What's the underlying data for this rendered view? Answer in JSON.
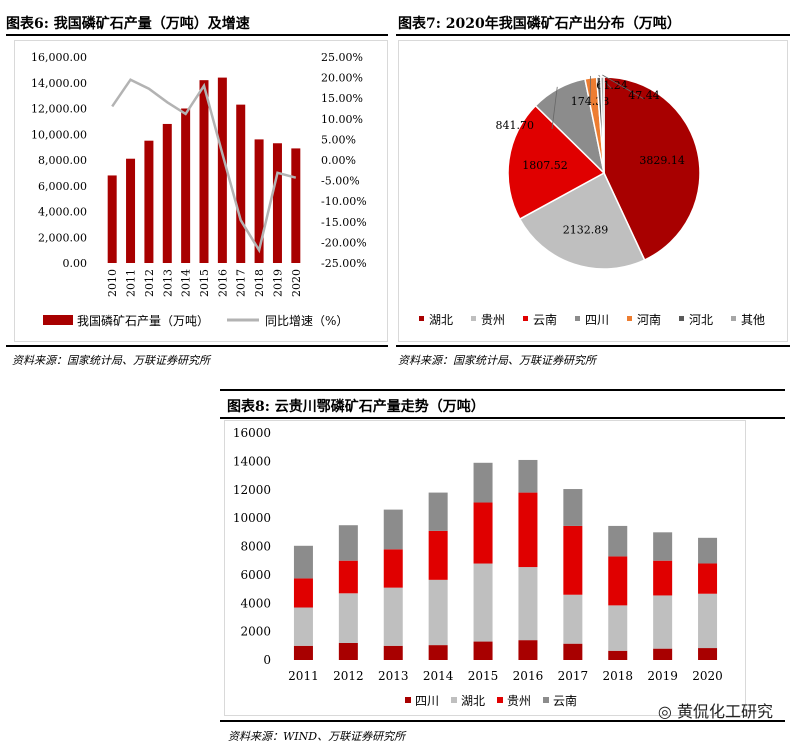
{
  "chart_data": [
    {
      "type": "bar",
      "header": "图表6:  我国磷矿石产量（万吨）及增速",
      "categories": [
        "2010",
        "2011",
        "2012",
        "2013",
        "2014",
        "2015",
        "2016",
        "2017",
        "2018",
        "2019",
        "2020"
      ],
      "series": [
        {
          "name": "我国磷矿石产量（万吨）",
          "type": "bar",
          "axis": "left",
          "color": "#a80000",
          "values": [
            6800,
            8100,
            9500,
            10800,
            12000,
            14200,
            14400,
            12300,
            9600,
            9300,
            8900
          ]
        },
        {
          "name": "同比增速（%）",
          "type": "line",
          "axis": "right",
          "color": "#b3b3b3",
          "values": [
            13.0,
            19.5,
            17.3,
            14.0,
            11.2,
            18.0,
            1.5,
            -14.6,
            -21.9,
            -3.1,
            -4.3
          ]
        }
      ],
      "y_left": {
        "ticks": [
          "16,000.00",
          "14,000.00",
          "12,000.00",
          "10,000.00",
          "8,000.00",
          "6,000.00",
          "4,000.00",
          "2,000.00",
          "0.00"
        ],
        "min": 0,
        "max": 16000
      },
      "y_right": {
        "ticks": [
          "25.00%",
          "20.00%",
          "15.00%",
          "10.00%",
          "5.00%",
          "0.00%",
          "-5.00%",
          "-10.00%",
          "-15.00%",
          "-20.00%",
          "-25.00%"
        ],
        "min": -25,
        "max": 25
      },
      "legend": "bottom",
      "source": "资料来源：国家统计局、万联证券研究所"
    },
    {
      "type": "pie",
      "header": "图表7:  2020年我国磷矿石产出分布（万吨）",
      "slices": [
        {
          "name": "湖北",
          "value": 3829.14,
          "label": "3829.14",
          "color": "#a80000"
        },
        {
          "name": "贵州",
          "value": 2132.89,
          "label": "2132.89",
          "color": "#bfbfbf"
        },
        {
          "name": "云南",
          "value": 1807.52,
          "label": "1807.52",
          "color": "#e00000"
        },
        {
          "name": "四川",
          "value": 841.7,
          "label": "841.70",
          "color": "#8c8c8c"
        },
        {
          "name": "河南",
          "value": 174.38,
          "label": "174.38",
          "color": "#ed7d31"
        },
        {
          "name": "河北",
          "value": 61.24,
          "label": "61.24",
          "color": "#595959"
        },
        {
          "name": "其他",
          "value": 47.44,
          "label": "47.44",
          "color": "#a6a6a6"
        }
      ],
      "legend": "bottom",
      "source": "资料来源：国家统计局、万联证券研究所"
    },
    {
      "type": "bar",
      "stacked": true,
      "header": "图表8:  云贵川鄂磷矿石产量走势（万吨）",
      "categories": [
        "2011",
        "2012",
        "2013",
        "2014",
        "2015",
        "2016",
        "2017",
        "2018",
        "2019",
        "2020"
      ],
      "series": [
        {
          "name": "四川",
          "color": "#a80000",
          "values": [
            1000,
            1200,
            1000,
            1050,
            1300,
            1400,
            1150,
            650,
            800,
            842
          ]
        },
        {
          "name": "湖北",
          "color": "#bfbfbf",
          "values": [
            2700,
            3500,
            4100,
            4600,
            5500,
            5150,
            3450,
            3200,
            3750,
            3829
          ]
        },
        {
          "name": "贵州",
          "color": "#e00000",
          "values": [
            2050,
            2300,
            2700,
            3450,
            4300,
            5250,
            4850,
            3450,
            2450,
            2133
          ]
        },
        {
          "name": "云南",
          "color": "#8c8c8c",
          "values": [
            2300,
            2500,
            2800,
            2700,
            2800,
            2300,
            2600,
            2150,
            2000,
            1808
          ]
        }
      ],
      "y": {
        "ticks": [
          "16000",
          "14000",
          "12000",
          "10000",
          "8000",
          "6000",
          "4000",
          "2000",
          "0"
        ],
        "min": 0,
        "max": 16000
      },
      "legend": "bottom",
      "source": "资料来源：WIND、万联证券研究所"
    }
  ],
  "watermark": "黄侃化工研究"
}
